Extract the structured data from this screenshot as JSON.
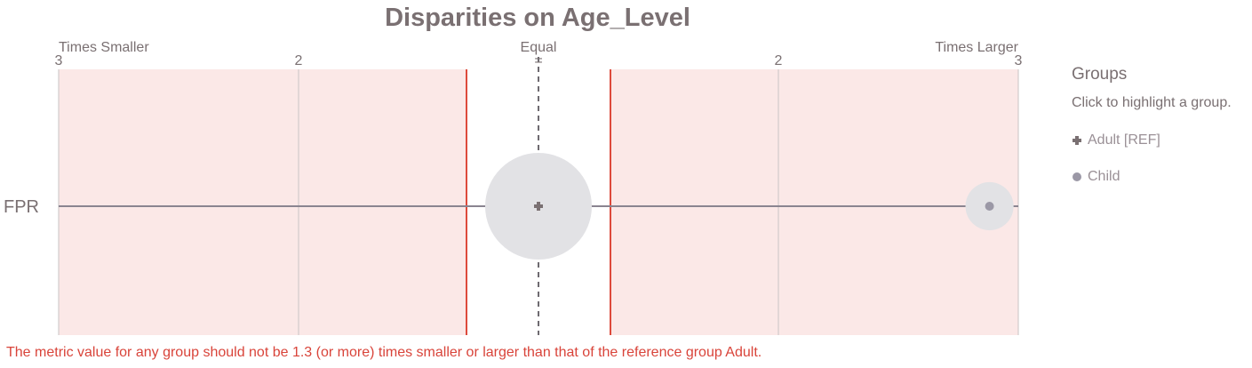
{
  "chart_data": {
    "type": "scatter",
    "title": "Disparities on Age_Level",
    "header_labels": {
      "left": "Times Smaller",
      "center": "Equal",
      "right": "Times Larger"
    },
    "x_ticks": [
      {
        "value": -3,
        "label": "3"
      },
      {
        "value": -2,
        "label": "2"
      },
      {
        "value": 1,
        "label": "="
      },
      {
        "value": 2,
        "label": "2"
      },
      {
        "value": 3,
        "label": "3"
      }
    ],
    "xlim": [
      -3,
      3
    ],
    "metrics": [
      "FPR"
    ],
    "fairness_threshold": 1.3,
    "series": [
      {
        "name": "Adult [REF]",
        "disparity": 1.0,
        "marker": "cross",
        "relative_group_size": 1.0
      },
      {
        "name": "Child",
        "disparity": 2.88,
        "marker": "dot",
        "relative_group_size": 0.44
      }
    ],
    "colors": {
      "unfair_region": "#fbe8e7",
      "threshold_line": "#dd4a3c",
      "bubble": "#e2e2e5",
      "axis_line": "#8a8490",
      "ref_marker": "#7a7072",
      "group_marker": "#9b98a6",
      "text": "#7a7072"
    }
  },
  "legend": {
    "title": "Groups",
    "subtitle": "Click to highlight a group.",
    "items": [
      "Adult [REF]",
      "Child"
    ]
  },
  "footnote": "The metric value for any group should not be 1.3 (or more) times smaller or larger than that of the reference group Adult."
}
